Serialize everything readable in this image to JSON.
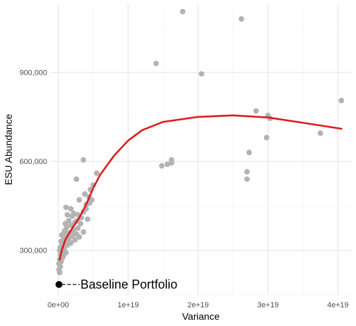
{
  "chart_data": {
    "type": "scatter",
    "xlabel": "Variance",
    "ylabel": "ESU Abundance",
    "xlim": [
      -1.2e+18,
      4.2e+19
    ],
    "ylim": [
      150000,
      1130000
    ],
    "x_ticks": [
      0,
      1e+19,
      2e+19,
      3e+19,
      4e+19
    ],
    "x_tick_labels": [
      "0e+00",
      "1e+19",
      "2e+19",
      "3e+19",
      "4e+19"
    ],
    "y_ticks": [
      300000,
      600000,
      900000
    ],
    "y_tick_labels": [
      "300,000",
      "600,000",
      "900,000"
    ],
    "grid": true,
    "colors": {
      "points": "#b3b3b3",
      "trend": "#e0191c",
      "grid_major": "#ebebeb",
      "grid_minor": "#f5f5f5",
      "baseline": "#000000"
    },
    "points": [
      [
        1.78e+19,
        1105000
      ],
      [
        2.62e+19,
        1080000
      ],
      [
        1.4e+19,
        930000
      ],
      [
        2.05e+19,
        895000
      ],
      [
        4.05e+19,
        805000
      ],
      [
        2.83e+19,
        770000
      ],
      [
        3e+19,
        755000
      ],
      [
        3.03e+19,
        745000
      ],
      [
        3.75e+19,
        695000
      ],
      [
        2.98e+19,
        680000
      ],
      [
        2.73e+19,
        630000
      ],
      [
        1.62e+19,
        605000
      ],
      [
        1.62e+19,
        595000
      ],
      [
        1.56e+19,
        590000
      ],
      [
        1.48e+19,
        585000
      ],
      [
        2.7e+19,
        565000
      ],
      [
        2.7e+19,
        540000
      ],
      [
        3.6e+18,
        605000
      ],
      [
        5.5e+18,
        560000
      ],
      [
        2.6e+18,
        540000
      ],
      [
        5e+18,
        520000
      ],
      [
        4.6e+18,
        505000
      ],
      [
        3.8e+18,
        490000
      ],
      [
        4.4e+18,
        480000
      ],
      [
        3e+18,
        470000
      ],
      [
        4.8e+18,
        470000
      ],
      [
        4e+18,
        455000
      ],
      [
        1.1e+18,
        445000
      ],
      [
        1.8e+18,
        440000
      ],
      [
        3.6e+18,
        430000
      ],
      [
        2.2e+18,
        425000
      ],
      [
        1.3e+18,
        420000
      ],
      [
        2.8e+18,
        420000
      ],
      [
        2e+18,
        415000
      ],
      [
        4.2e+18,
        405000
      ],
      [
        1.5e+18,
        400000
      ],
      [
        2.4e+18,
        395000
      ],
      [
        1e+18,
        390000
      ],
      [
        3.2e+18,
        390000
      ],
      [
        1.8e+18,
        385000
      ],
      [
        1.2e+18,
        378000
      ],
      [
        2.8e+18,
        375000
      ],
      [
        2.2e+18,
        370000
      ],
      [
        9e+17,
        365000
      ],
      [
        3.6e+18,
        362000
      ],
      [
        1.6e+18,
        360000
      ],
      [
        2.6e+18,
        355000
      ],
      [
        5e+17,
        352000
      ],
      [
        1.2e+18,
        350000
      ],
      [
        2e+18,
        348000
      ],
      [
        3e+18,
        345000
      ],
      [
        8e+17,
        340000
      ],
      [
        1.5e+18,
        338000
      ],
      [
        2.4e+18,
        335000
      ],
      [
        4e+17,
        330000
      ],
      [
        1e+18,
        328000
      ],
      [
        1.8e+18,
        325000
      ],
      [
        6e+17,
        320000
      ],
      [
        1.3e+18,
        318000
      ],
      [
        3e+17,
        310000
      ],
      [
        8e+17,
        305000
      ],
      [
        2e+17,
        300000
      ],
      [
        5e+17,
        295000
      ],
      [
        1.1e+18,
        292000
      ],
      [
        3e+17,
        285000
      ],
      [
        7e+17,
        280000
      ],
      [
        2e+17,
        270000
      ],
      [
        4e+17,
        262000
      ],
      [
        1e+17,
        255000
      ],
      [
        3e+17,
        245000
      ],
      [
        1e+17,
        235000
      ],
      [
        2e+17,
        225000
      ],
      [
        6e+17,
        275000
      ],
      [
        9e+17,
        300000
      ],
      [
        1.4e+18,
        330000
      ],
      [
        2.1e+18,
        360000
      ],
      [
        2.7e+18,
        400000
      ],
      [
        3.3e+18,
        410000
      ],
      [
        4e+18,
        440000
      ],
      [
        4.5e+18,
        460000
      ]
    ],
    "trend": [
      [
        2e+17,
        268000
      ],
      [
        5e+17,
        300000
      ],
      [
        1e+18,
        335000
      ],
      [
        2e+18,
        375000
      ],
      [
        3e+18,
        410000
      ],
      [
        4e+18,
        455000
      ],
      [
        5e+18,
        510000
      ],
      [
        6e+18,
        555000
      ],
      [
        8e+18,
        620000
      ],
      [
        1e+19,
        670000
      ],
      [
        1.2e+19,
        705000
      ],
      [
        1.5e+19,
        733000
      ],
      [
        2e+19,
        750000
      ],
      [
        2.5e+19,
        755000
      ],
      [
        3e+19,
        748000
      ],
      [
        3.5e+19,
        730000
      ],
      [
        4.05e+19,
        710000
      ]
    ],
    "baseline": {
      "x": 1e+17,
      "y": 185000,
      "label": "Baseline Portfolio"
    }
  }
}
